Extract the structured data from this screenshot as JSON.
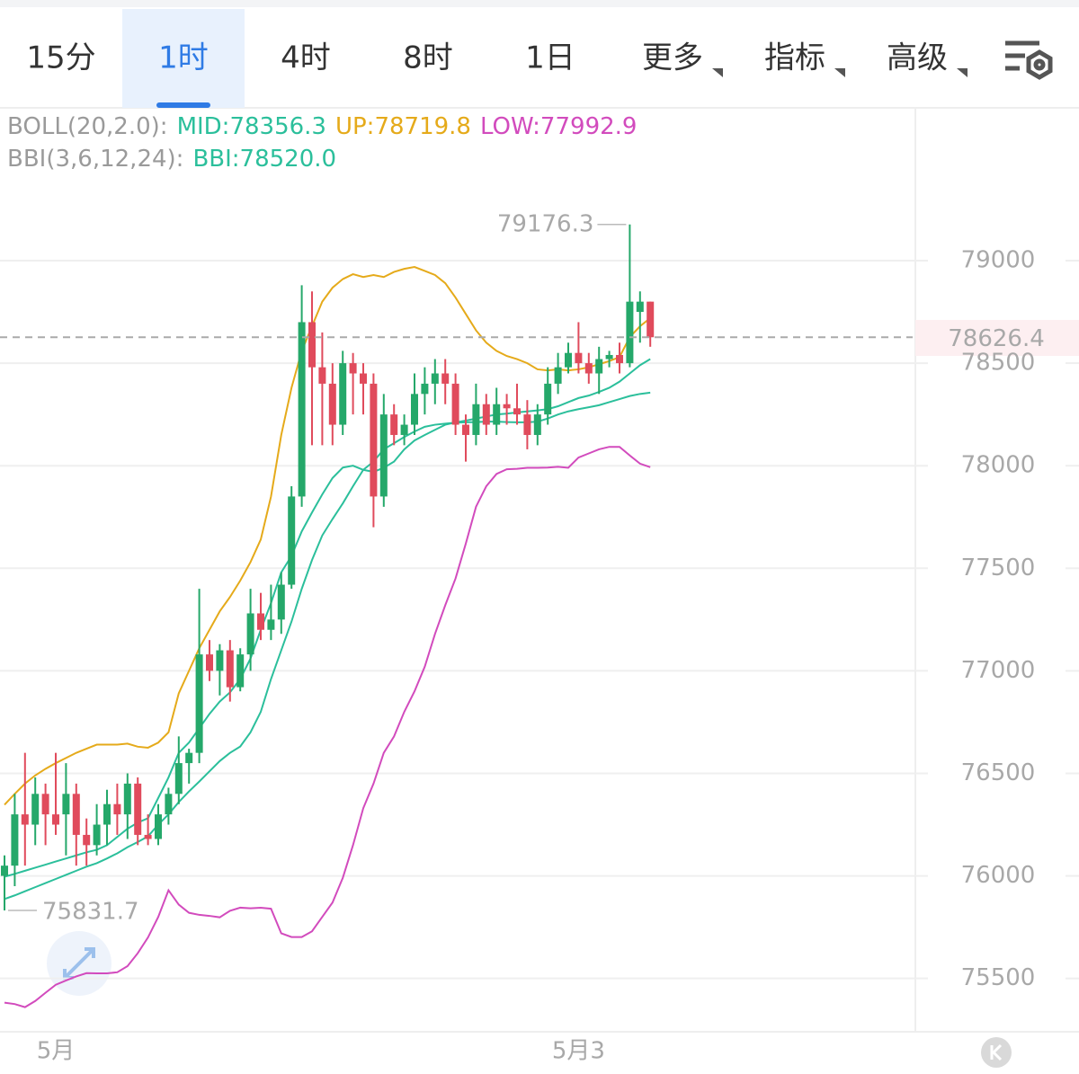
{
  "chart_data": {
    "type": "candlestick",
    "tabs": [
      "15分",
      "1时",
      "4时",
      "8时",
      "1日",
      "更多",
      "指标",
      "高级"
    ],
    "selected_tab": 1,
    "indicator_groups": [
      "BOLL(20,2.0):",
      "BBI(3,6,12,24):"
    ],
    "up_color": "#25a86a",
    "down_color": "#e04b5c",
    "ylim": [
      75240,
      79745
    ],
    "yticks": [
      75500,
      76000,
      76500,
      77000,
      77500,
      78000,
      78500,
      79000
    ],
    "grid": true,
    "last_price": 78626.4,
    "last_price_color": "#d9364a",
    "high_index": 61,
    "low_index": 0,
    "categories": [
      null,
      null,
      null,
      null,
      null,
      "5月",
      null,
      null,
      null,
      null,
      null,
      null,
      null,
      null,
      null,
      null,
      null,
      null,
      null,
      null,
      null,
      null,
      null,
      null,
      null,
      null,
      null,
      null,
      null,
      null,
      null,
      null,
      null,
      null,
      null,
      null,
      null,
      null,
      null,
      null,
      null,
      null,
      null,
      null,
      null,
      null,
      null,
      null,
      null,
      null,
      null,
      null,
      null,
      null,
      null,
      null,
      "5月3",
      null,
      null,
      null,
      null,
      null,
      null,
      null
    ],
    "ohlc": [
      [
        76000,
        76100,
        75831.7,
        76050
      ],
      [
        76050,
        76400,
        75950,
        76300
      ],
      [
        76300,
        76600,
        76050,
        76250
      ],
      [
        76250,
        76480,
        76150,
        76400
      ],
      [
        76400,
        76450,
        76150,
        76300
      ],
      [
        76300,
        76600,
        76200,
        76250
      ],
      [
        76300,
        76550,
        76100,
        76400
      ],
      [
        76400,
        76450,
        76050,
        76200
      ],
      [
        76200,
        76280,
        76050,
        76150
      ],
      [
        76150,
        76350,
        76100,
        76250
      ],
      [
        76250,
        76420,
        76150,
        76350
      ],
      [
        76350,
        76450,
        76200,
        76300
      ],
      [
        76300,
        76500,
        76180,
        76450
      ],
      [
        76450,
        76480,
        76150,
        76200
      ],
      [
        76200,
        76300,
        76150,
        76180
      ],
      [
        76180,
        76350,
        76150,
        76300
      ],
      [
        76300,
        76430,
        76250,
        76400
      ],
      [
        76400,
        76680,
        76350,
        76550
      ],
      [
        76550,
        76620,
        76450,
        76600
      ],
      [
        76600,
        77400,
        76550,
        77080
      ],
      [
        77080,
        77150,
        76950,
        77000
      ],
      [
        77000,
        77130,
        76880,
        77100
      ],
      [
        77100,
        77150,
        76850,
        76920
      ],
      [
        76920,
        77110,
        76900,
        77080
      ],
      [
        77080,
        77400,
        77000,
        77280
      ],
      [
        77280,
        77380,
        77150,
        77200
      ],
      [
        77200,
        77420,
        77150,
        77250
      ],
      [
        77250,
        77480,
        77180,
        77420
      ],
      [
        77420,
        77900,
        77400,
        77850
      ],
      [
        77850,
        78880,
        77800,
        78700
      ],
      [
        78700,
        78850,
        78100,
        78480
      ],
      [
        78480,
        78650,
        78100,
        78400
      ],
      [
        78400,
        78500,
        78100,
        78200
      ],
      [
        78200,
        78560,
        78150,
        78500
      ],
      [
        78500,
        78550,
        78250,
        78450
      ],
      [
        78450,
        78500,
        78250,
        78400
      ],
      [
        78400,
        78450,
        77700,
        77850
      ],
      [
        77850,
        78350,
        77800,
        78250
      ],
      [
        78250,
        78300,
        78100,
        78150
      ],
      [
        78150,
        78250,
        78100,
        78200
      ],
      [
        78200,
        78450,
        78150,
        78350
      ],
      [
        78350,
        78480,
        78250,
        78400
      ],
      [
        78400,
        78520,
        78300,
        78450
      ],
      [
        78450,
        78520,
        78300,
        78400
      ],
      [
        78400,
        78450,
        78150,
        78200
      ],
      [
        78200,
        78250,
        78020,
        78150
      ],
      [
        78150,
        78400,
        78100,
        78300
      ],
      [
        78300,
        78350,
        78150,
        78200
      ],
      [
        78200,
        78380,
        78150,
        78300
      ],
      [
        78300,
        78350,
        78200,
        78280
      ],
      [
        78280,
        78400,
        78200,
        78250
      ],
      [
        78250,
        78320,
        78080,
        78150
      ],
      [
        78150,
        78300,
        78100,
        78250
      ],
      [
        78250,
        78480,
        78200,
        78400
      ],
      [
        78400,
        78550,
        78350,
        78480
      ],
      [
        78480,
        78600,
        78450,
        78550
      ],
      [
        78550,
        78700,
        78450,
        78500
      ],
      [
        78500,
        78550,
        78400,
        78450
      ],
      [
        78450,
        78580,
        78350,
        78520
      ],
      [
        78520,
        78560,
        78480,
        78540
      ],
      [
        78540,
        78600,
        78450,
        78500
      ],
      [
        78500,
        79176.3,
        78480,
        78800
      ],
      [
        78750,
        78850,
        78600,
        78800
      ],
      [
        78800,
        78800,
        78580,
        78626.4
      ]
    ],
    "series": [
      {
        "name": "MID:78356.3",
        "group": 0,
        "color": "#2bbf9b",
        "values": [
          75887,
          75905,
          75925,
          75945,
          75965,
          75985,
          76005,
          76025,
          76045,
          76062,
          76085,
          76110,
          76140,
          76165,
          76193,
          76250,
          76300,
          76360,
          76412,
          76460,
          76510,
          76560,
          76600,
          76631,
          76700,
          76800,
          76960,
          77100,
          77240,
          77400,
          77540,
          77660,
          77740,
          77816,
          77900,
          77980,
          78020,
          78080,
          78110,
          78140,
          78167,
          78190,
          78200,
          78205,
          78210,
          78212,
          78213,
          78215,
          78215,
          78213,
          78212,
          78212,
          78215,
          78230,
          78250,
          78265,
          78276,
          78285,
          78295,
          78310,
          78325,
          78340,
          78350,
          78356.3
        ]
      },
      {
        "name": "UP:78719.8",
        "group": 0,
        "color": "#e5aa1a",
        "values": [
          76347,
          76400,
          76450,
          76490,
          76522,
          76550,
          76575,
          76600,
          76620,
          76640,
          76640,
          76640,
          76645,
          76630,
          76625,
          76650,
          76700,
          76890,
          77000,
          77110,
          77200,
          77290,
          77360,
          77440,
          77530,
          77640,
          77850,
          78150,
          78380,
          78560,
          78680,
          78800,
          78868,
          78910,
          78934,
          78920,
          78930,
          78920,
          78945,
          78960,
          78969,
          78950,
          78930,
          78890,
          78820,
          78740,
          78660,
          78600,
          78560,
          78535,
          78520,
          78500,
          78470,
          78465,
          78470,
          78465,
          78470,
          78480,
          78495,
          78510,
          78530,
          78627,
          78680,
          78719.8
        ]
      },
      {
        "name": "LOW:77992.9",
        "group": 0,
        "color": "#d24bbd",
        "values": [
          75382,
          75375,
          75360,
          75390,
          75430,
          75469,
          75490,
          75510,
          75526,
          75525,
          75525,
          75530,
          75560,
          75623,
          75700,
          75800,
          75930,
          75860,
          75820,
          75810,
          75805,
          75798,
          75830,
          75845,
          75842,
          75845,
          75840,
          75720,
          75702,
          75702,
          75730,
          75800,
          75870,
          75990,
          76150,
          76330,
          76450,
          76600,
          76680,
          76800,
          76900,
          77020,
          77180,
          77320,
          77450,
          77620,
          77800,
          77900,
          77960,
          77983,
          77985,
          77990,
          77990,
          77991,
          77995,
          77990,
          78040,
          78060,
          78080,
          78092,
          78092,
          78050,
          78010,
          77992.9
        ]
      },
      {
        "name": "BBI:78520.0",
        "group": 1,
        "color": "#2bbf9b",
        "values": [
          75996,
          76010,
          76025,
          76040,
          76055,
          76070,
          76085,
          76100,
          76115,
          76127,
          76150,
          76190,
          76230,
          76260,
          76281,
          76380,
          76480,
          76600,
          76650,
          76720,
          76790,
          76850,
          76895,
          76960,
          77060,
          77200,
          77330,
          77480,
          77560,
          77680,
          77772,
          77860,
          77940,
          77991,
          78000,
          77980,
          77970,
          77990,
          78020,
          78080,
          78123,
          78150,
          78175,
          78200,
          78211,
          78220,
          78230,
          78240,
          78250,
          78254,
          78260,
          78265,
          78270,
          78276,
          78290,
          78310,
          78330,
          78342,
          78360,
          78380,
          78410,
          78450,
          78490,
          78520
        ]
      }
    ]
  }
}
